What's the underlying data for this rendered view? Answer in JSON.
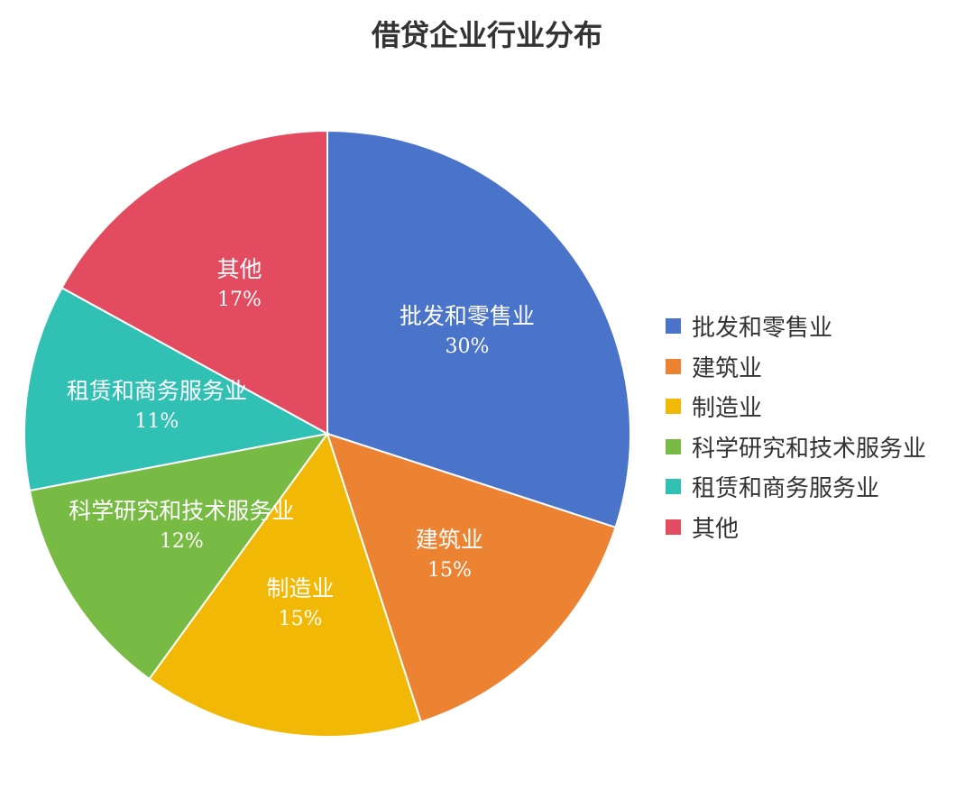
{
  "chart_data": {
    "type": "pie",
    "title": "借贷企业行业分布",
    "categories": [
      "批发和零售业",
      "建筑业",
      "制造业",
      "科学研究和技术服务业",
      "租赁和商务服务业",
      "其他"
    ],
    "values": [
      30,
      15,
      15,
      12,
      11,
      17
    ],
    "value_labels": [
      "30%",
      "15%",
      "15%",
      "12%",
      "11%",
      "17%"
    ],
    "colors": [
      "#4a74ca",
      "#ec8333",
      "#f1b806",
      "#78bb44",
      "#30c0b4",
      "#e34b60"
    ],
    "legend": "right"
  }
}
